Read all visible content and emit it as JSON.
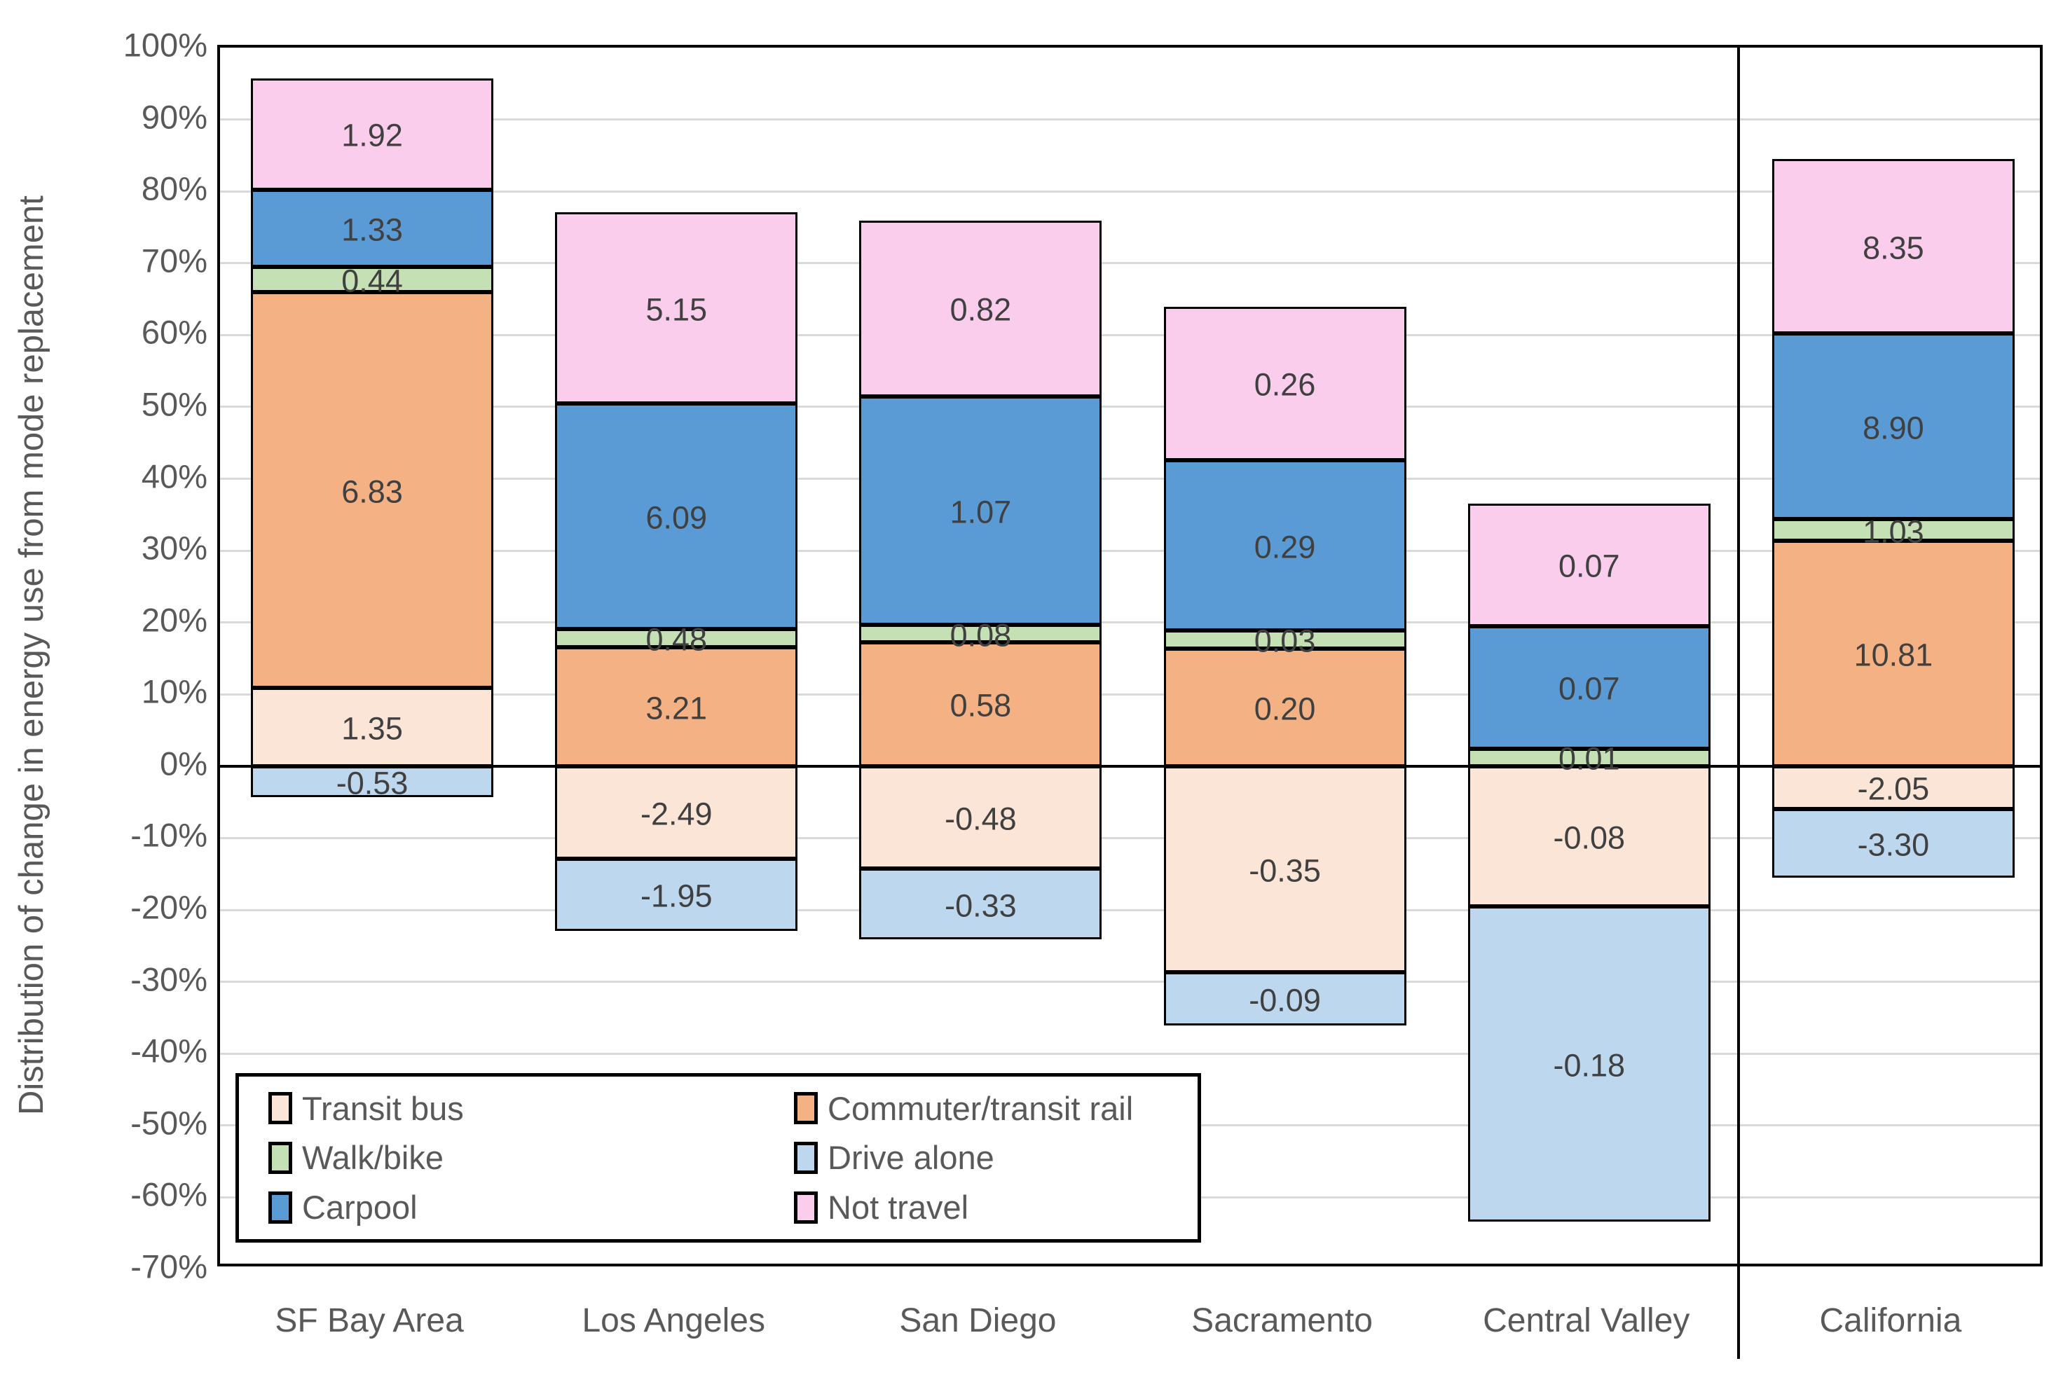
{
  "chart_data": {
    "type": "bar",
    "stacked": true,
    "normalized": "each bar scaled so segment height = |value| / sum(|values|) of that bar",
    "ylabel": "Distribution of change in energy use from mode replacement",
    "xlabel": "",
    "ylim": [
      -70,
      100
    ],
    "ytick_step": 10,
    "yticks": [
      "100%",
      "90%",
      "80%",
      "70%",
      "60%",
      "50%",
      "40%",
      "30%",
      "20%",
      "10%",
      "0%",
      "-10%",
      "-20%",
      "-30%",
      "-40%",
      "-50%",
      "-60%",
      "-70%"
    ],
    "grid": true,
    "legend_position": "inside-bottom-left",
    "separator_after_category_index": 4,
    "categories": [
      "SF Bay Area",
      "Los Angeles",
      "San Diego",
      "Sacramento",
      "Central Valley",
      "California"
    ],
    "series": [
      {
        "name": "Transit bus",
        "color": "#FBE5D6",
        "values": [
          1.35,
          -2.49,
          -0.48,
          -0.35,
          -0.08,
          -2.05
        ]
      },
      {
        "name": "Commuter/transit rail",
        "color": "#F4B183",
        "values": [
          6.83,
          3.21,
          0.58,
          0.2,
          null,
          10.81
        ]
      },
      {
        "name": "Walk/bike",
        "color": "#C5E0B4",
        "values": [
          0.44,
          0.48,
          0.08,
          0.03,
          0.01,
          1.03
        ]
      },
      {
        "name": "Drive alone",
        "color": "#BDD7EE",
        "values": [
          -0.53,
          -1.95,
          -0.33,
          -0.09,
          -0.18,
          -3.3
        ]
      },
      {
        "name": "Carpool",
        "color": "#5B9BD5",
        "values": [
          1.33,
          6.09,
          1.07,
          0.29,
          0.07,
          8.9
        ]
      },
      {
        "name": "Not travel",
        "color": "#F9CDEB",
        "values": [
          1.92,
          5.15,
          0.82,
          0.26,
          0.07,
          8.35
        ]
      }
    ],
    "colors": {
      "grid": "#D9D9D9",
      "axis_text": "#595959",
      "data_label_text": "#404040",
      "zero_line": "#000000",
      "border": "#000000"
    }
  }
}
